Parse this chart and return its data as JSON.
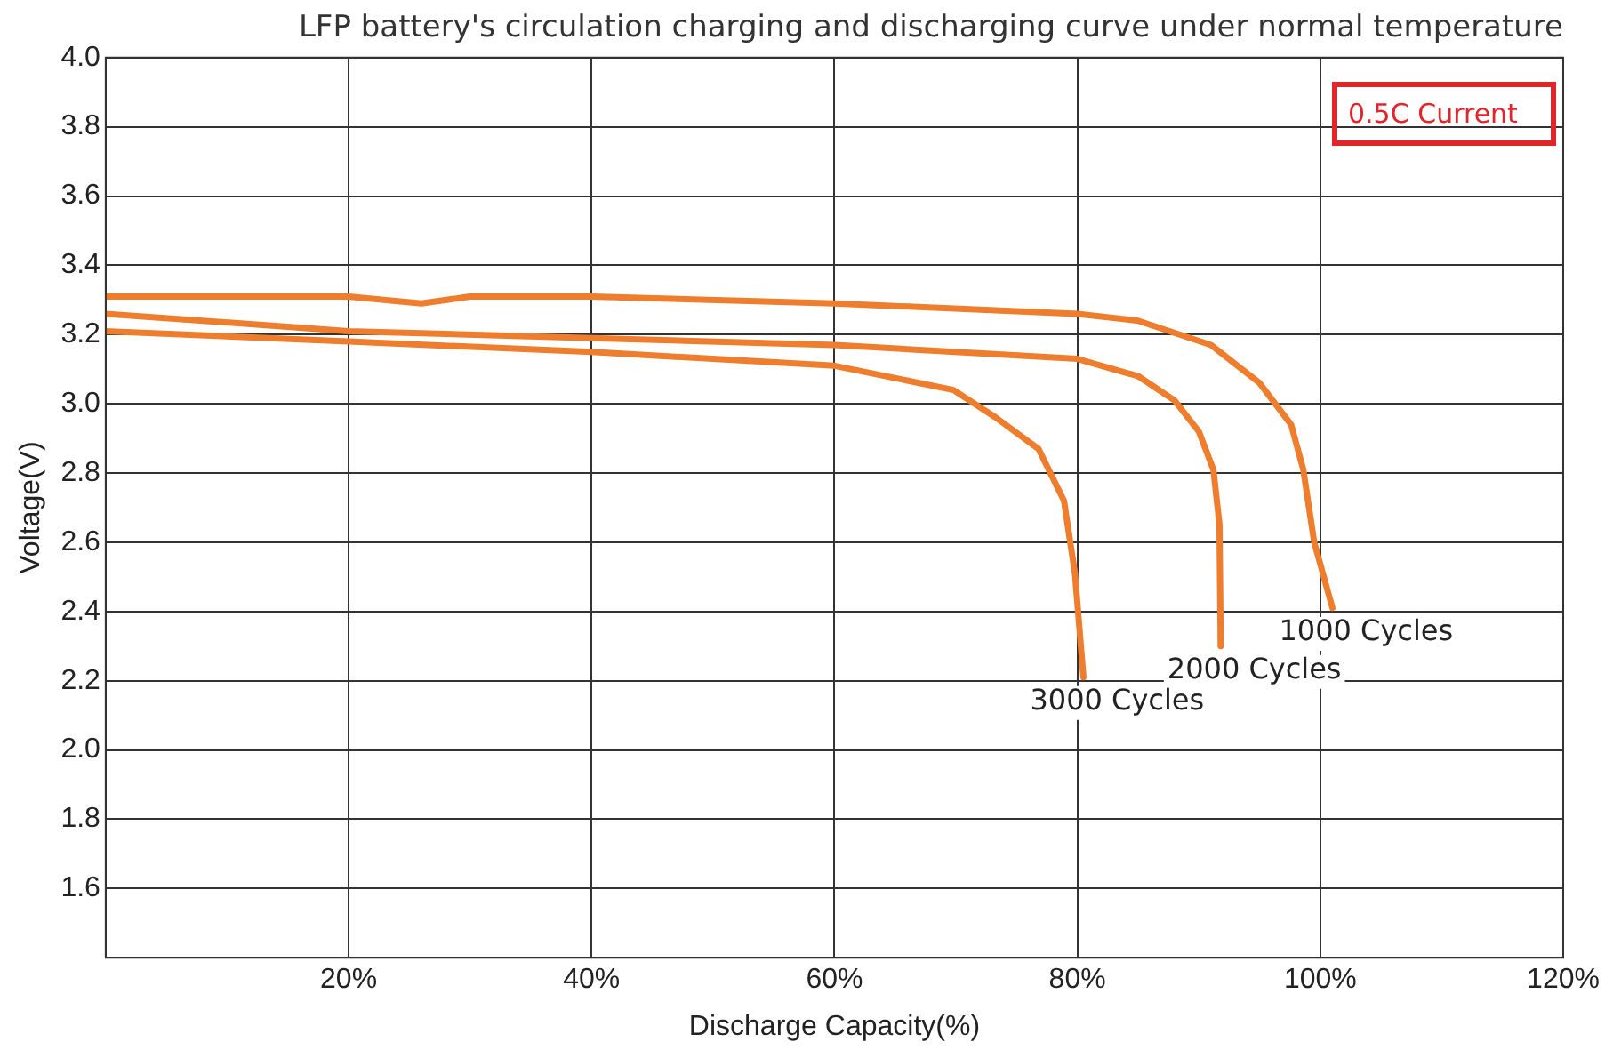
{
  "chart_data": {
    "type": "line",
    "title": "LFP battery's circulation charging and discharging curve under normal temperature",
    "xlabel": "Discharge Capacity(%)",
    "ylabel": "Voltage(V)",
    "xlim": [
      0,
      120
    ],
    "xticks": [
      {
        "value": 20,
        "label": "20%"
      },
      {
        "value": 40,
        "label": "40%"
      },
      {
        "value": 60,
        "label": "60%"
      },
      {
        "value": 80,
        "label": "80%"
      },
      {
        "value": 100,
        "label": "100%"
      },
      {
        "value": 120,
        "label": "120%"
      }
    ],
    "ylim": [
      1.4,
      4.0
    ],
    "yticks": [
      1.6,
      1.8,
      {
        "value": 2.0,
        "label": "2.0"
      },
      2.2,
      2.4,
      2.6,
      2.8,
      {
        "value": 3.0,
        "label": "3.0"
      },
      3.2,
      3.4,
      3.6,
      3.8,
      {
        "value": 4.0,
        "label": "4.0"
      }
    ],
    "grid": true,
    "legend": false,
    "marker": "none",
    "line_style": "solid",
    "annotations": [
      "0.5C Current"
    ],
    "series": [
      {
        "name": "1000 Cycles",
        "color": "#ee7d2e",
        "x": [
          0,
          3,
          20,
          26,
          30,
          40,
          60,
          80,
          85,
          91,
          95,
          97.6,
          98.6,
          99.5,
          101
        ],
        "values": [
          3.31,
          3.31,
          3.31,
          3.29,
          3.31,
          3.31,
          3.29,
          3.26,
          3.24,
          3.17,
          3.06,
          2.94,
          2.81,
          2.6,
          2.41
        ]
      },
      {
        "name": "2000 Cycles",
        "color": "#ee7d2e",
        "x": [
          0,
          20,
          40,
          60,
          80,
          85,
          88,
          90,
          91.2,
          91.7,
          91.8
        ],
        "values": [
          3.26,
          3.21,
          3.19,
          3.17,
          3.13,
          3.08,
          3.01,
          2.92,
          2.81,
          2.65,
          2.3
        ]
      },
      {
        "name": "3000 Cycles",
        "color": "#ee7d2e",
        "x": [
          0,
          20,
          40,
          60,
          69.8,
          73.3,
          76.8,
          78.9,
          79.8,
          80.5
        ],
        "values": [
          3.21,
          3.18,
          3.15,
          3.11,
          3.04,
          2.96,
          2.87,
          2.72,
          2.51,
          2.21
        ]
      }
    ]
  }
}
